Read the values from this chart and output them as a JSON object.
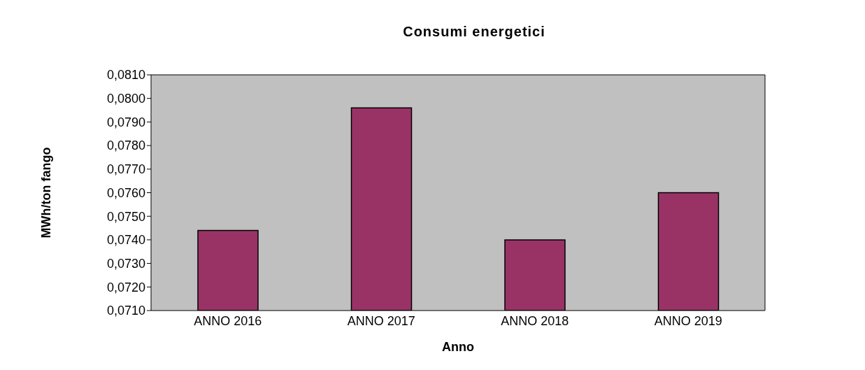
{
  "chart_data": {
    "type": "bar",
    "title": "Consumi energetici",
    "xlabel": "Anno",
    "ylabel": "MWh/ton fango",
    "categories": [
      "ANNO 2016",
      "ANNO 2017",
      "ANNO 2018",
      "ANNO 2019"
    ],
    "values": [
      0.0744,
      0.0796,
      0.074,
      0.076
    ],
    "color": "#993366",
    "ylim": [
      0.071,
      0.081
    ],
    "yticks": [
      {
        "value": 0.071,
        "label": "0,0710"
      },
      {
        "value": 0.072,
        "label": "0,0720"
      },
      {
        "value": 0.073,
        "label": "0,0730"
      },
      {
        "value": 0.074,
        "label": "0,0740"
      },
      {
        "value": 0.075,
        "label": "0,0750"
      },
      {
        "value": 0.076,
        "label": "0,0760"
      },
      {
        "value": 0.077,
        "label": "0,0770"
      },
      {
        "value": 0.078,
        "label": "0,0780"
      },
      {
        "value": 0.079,
        "label": "0,0790"
      },
      {
        "value": 0.08,
        "label": "0,0800"
      },
      {
        "value": 0.081,
        "label": "0,0810"
      }
    ],
    "grid": false
  }
}
